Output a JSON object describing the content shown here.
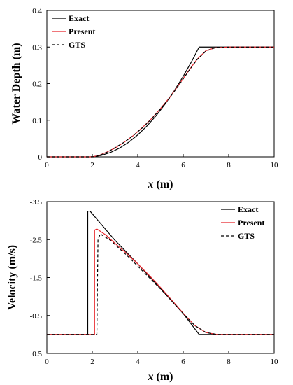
{
  "chart_data": [
    {
      "type": "line",
      "xlabel_var": "x",
      "xlabel_unit": "(m)",
      "ylabel": "Water Depth (m)",
      "xlim": [
        0,
        10
      ],
      "ylim": [
        0,
        0.4
      ],
      "y_reversed": false,
      "xticks": [
        0,
        2,
        4,
        6,
        8,
        10
      ],
      "yticks": [
        0,
        0.1,
        0.2,
        0.3,
        0.4
      ],
      "ytick_labels": [
        "0",
        "0.1",
        "0.2",
        "0.3",
        "0.4"
      ],
      "legend_position": "top-left",
      "series": [
        {
          "name": "Exact",
          "color": "#000000",
          "dash": "solid",
          "x": [
            0,
            1.9,
            2.1,
            2.4,
            2.8,
            3.2,
            3.6,
            4.0,
            4.4,
            4.8,
            5.2,
            5.6,
            6.0,
            6.4,
            6.7,
            8,
            10
          ],
          "y": [
            0,
            0,
            0.001,
            0.004,
            0.012,
            0.024,
            0.04,
            0.06,
            0.084,
            0.112,
            0.144,
            0.18,
            0.22,
            0.264,
            0.3,
            0.3,
            0.3
          ]
        },
        {
          "name": "Present",
          "color": "#e8252b",
          "dash": "solid",
          "x": [
            0,
            2.0,
            2.3,
            2.6,
            3.0,
            3.4,
            3.8,
            4.2,
            4.6,
            5.0,
            5.4,
            5.8,
            6.2,
            6.6,
            7.0,
            7.4,
            8,
            10
          ],
          "y": [
            0,
            0,
            0.004,
            0.012,
            0.024,
            0.04,
            0.058,
            0.08,
            0.104,
            0.132,
            0.162,
            0.196,
            0.232,
            0.266,
            0.29,
            0.298,
            0.3,
            0.3
          ]
        },
        {
          "name": "GTS",
          "color": "#000000",
          "dash": "dashed",
          "x": [
            0,
            2.1,
            2.4,
            2.7,
            3.0,
            3.4,
            3.8,
            4.2,
            4.6,
            5.0,
            5.4,
            5.8,
            6.2,
            6.6,
            7.0,
            7.4,
            8,
            10
          ],
          "y": [
            0,
            0,
            0.006,
            0.014,
            0.025,
            0.04,
            0.058,
            0.079,
            0.103,
            0.131,
            0.161,
            0.195,
            0.231,
            0.265,
            0.289,
            0.298,
            0.3,
            0.3
          ]
        }
      ]
    },
    {
      "type": "line",
      "xlabel_var": "x",
      "xlabel_unit": "(m)",
      "ylabel": "Velocity  (m/s)",
      "xlim": [
        0,
        10
      ],
      "ylim": [
        -3.5,
        0.5
      ],
      "y_reversed": true,
      "xticks": [
        0,
        2,
        4,
        6,
        8,
        10
      ],
      "yticks": [
        -3.5,
        -2.5,
        -1.5,
        -0.5,
        0.5
      ],
      "ytick_labels": [
        "-3.5",
        "-2.5",
        "-1.5",
        "-0.5",
        "0.5"
      ],
      "legend_position": "top-right",
      "series": [
        {
          "name": "Exact",
          "color": "#000000",
          "dash": "solid",
          "x": [
            0,
            1.8,
            1.8,
            1.9,
            2.3,
            3.0,
            4.0,
            5.0,
            6.0,
            6.7,
            10
          ],
          "y": [
            0,
            0,
            -3.25,
            -3.25,
            -2.97,
            -2.48,
            -1.86,
            -1.21,
            -0.55,
            0,
            0
          ]
        },
        {
          "name": "Present",
          "color": "#e8252b",
          "dash": "solid",
          "x": [
            0,
            2.1,
            2.1,
            2.2,
            2.6,
            3.0,
            3.5,
            4.0,
            4.5,
            5.0,
            5.5,
            6.0,
            6.5,
            7.0,
            7.5,
            10
          ],
          "y": [
            0,
            0,
            -2.75,
            -2.78,
            -2.62,
            -2.4,
            -2.14,
            -1.86,
            -1.56,
            -1.24,
            -0.9,
            -0.56,
            -0.24,
            -0.05,
            0,
            0
          ]
        },
        {
          "name": "GTS",
          "color": "#000000",
          "dash": "dashed",
          "x": [
            0,
            2.2,
            2.25,
            2.35,
            2.8,
            3.2,
            3.6,
            4.0,
            4.5,
            5.0,
            5.5,
            6.0,
            6.5,
            7.0,
            7.5,
            10
          ],
          "y": [
            0,
            0,
            -2.5,
            -2.65,
            -2.48,
            -2.26,
            -2.04,
            -1.8,
            -1.5,
            -1.2,
            -0.88,
            -0.55,
            -0.24,
            -0.05,
            0,
            0
          ]
        }
      ]
    }
  ]
}
